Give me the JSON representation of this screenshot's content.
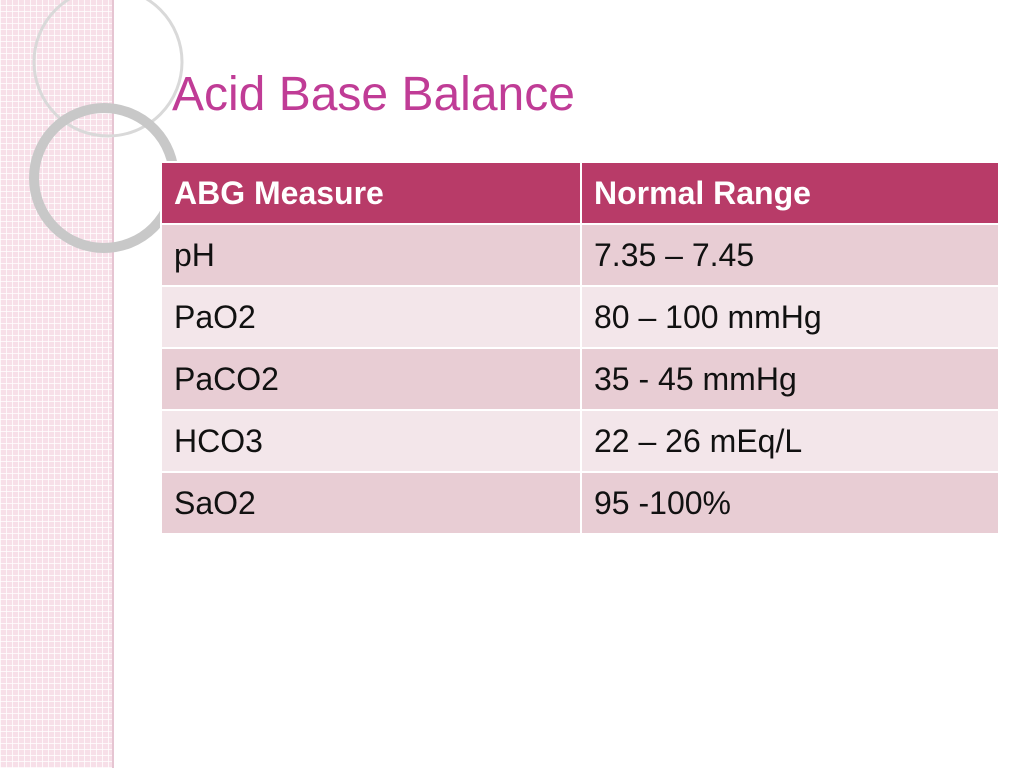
{
  "slide": {
    "title": "Acid Base Balance"
  },
  "table": {
    "headers": [
      "ABG Measure",
      "Normal Range"
    ],
    "rows": [
      [
        "pH",
        "7.35 – 7.45"
      ],
      [
        "PaO2",
        "80 – 100 mmHg"
      ],
      [
        "PaCO2",
        "35 - 45 mmHg"
      ],
      [
        "HCO3",
        "22 – 26 mEq/L"
      ],
      [
        "SaO2",
        "95 -100%"
      ]
    ]
  },
  "colors": {
    "title": "#c03c96",
    "header_bg": "#b83b68",
    "row_dark": "#e8cdd4",
    "row_light": "#f3e6ea",
    "side_panel": "#f7dfe8"
  }
}
